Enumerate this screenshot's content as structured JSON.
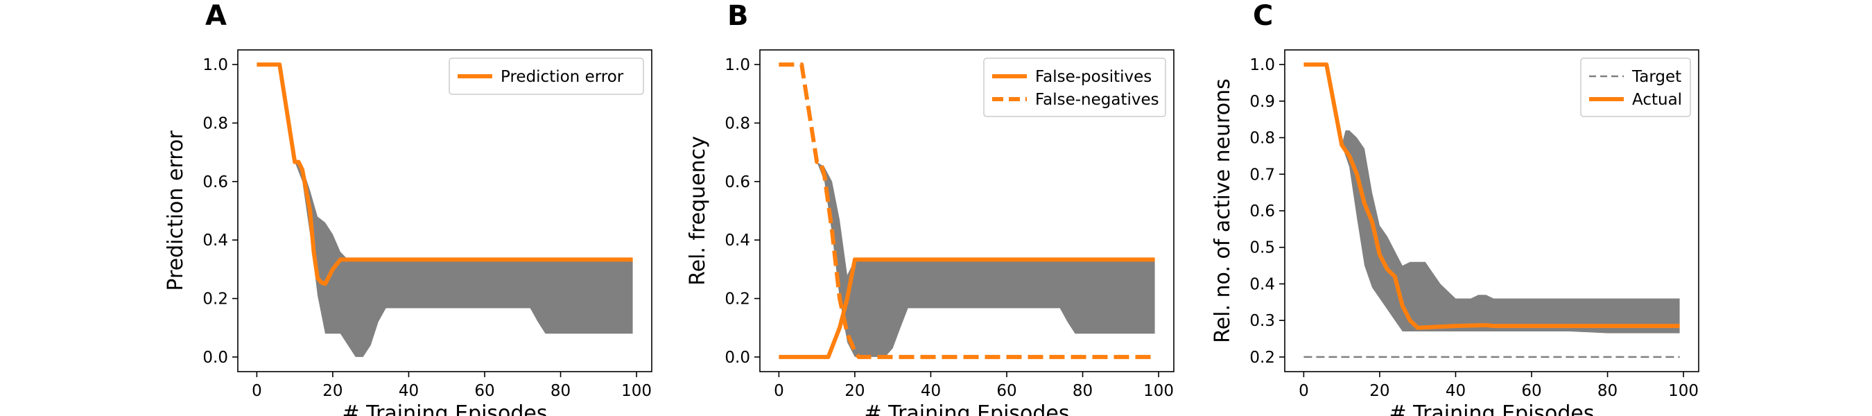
{
  "chart_data": [
    {
      "panel": "A",
      "type": "line",
      "xlabel": "# Training Episodes",
      "ylabel": "Prediction error",
      "xlim": [
        -5,
        104
      ],
      "ylim": [
        -0.05,
        1.05
      ],
      "xticks": [
        "0",
        "20",
        "40",
        "60",
        "80",
        "100"
      ],
      "yticks": [
        "0.0",
        "0.2",
        "0.4",
        "0.6",
        "0.8",
        "1.0"
      ],
      "legend_position": "top-right",
      "band": {
        "color": "#808080",
        "x": [
          10,
          12,
          14,
          16,
          18,
          20,
          22,
          24,
          26,
          28,
          30,
          32,
          34,
          36,
          40,
          50,
          60,
          70,
          72,
          74,
          76,
          78,
          80,
          90,
          99
        ],
        "upper": [
          0.667,
          0.65,
          0.57,
          0.48,
          0.46,
          0.42,
          0.36,
          0.333,
          0.333,
          0.333,
          0.333,
          0.333,
          0.333,
          0.333,
          0.333,
          0.333,
          0.333,
          0.333,
          0.333,
          0.333,
          0.333,
          0.333,
          0.333,
          0.333,
          0.333
        ],
        "lower": [
          0.667,
          0.6,
          0.42,
          0.21,
          0.08,
          0.08,
          0.08,
          0.04,
          0.0,
          0.0,
          0.04,
          0.12,
          0.167,
          0.167,
          0.167,
          0.167,
          0.167,
          0.167,
          0.167,
          0.12,
          0.08,
          0.08,
          0.08,
          0.08,
          0.08
        ]
      },
      "series": [
        {
          "name": "Prediction error",
          "color": "#ff7f0e",
          "dash": "solid",
          "x": [
            0,
            6,
            10,
            11,
            12,
            14,
            15,
            16,
            17,
            18,
            20,
            22,
            99
          ],
          "values": [
            1.0,
            1.0,
            0.667,
            0.667,
            0.64,
            0.5,
            0.36,
            0.27,
            0.255,
            0.25,
            0.3,
            0.333,
            0.333
          ]
        }
      ]
    },
    {
      "panel": "B",
      "type": "line",
      "xlabel": "# Training Episodes",
      "ylabel": "Rel. frequency",
      "xlim": [
        -5,
        104
      ],
      "ylim": [
        -0.05,
        1.05
      ],
      "xticks": [
        "0",
        "20",
        "40",
        "60",
        "80",
        "100"
      ],
      "yticks": [
        "0.0",
        "0.2",
        "0.4",
        "0.6",
        "0.8",
        "1.0"
      ],
      "legend_position": "top-right",
      "band": {
        "color": "#808080",
        "x": [
          10,
          12,
          14,
          16,
          18,
          20,
          22,
          24,
          26,
          28,
          30,
          32,
          34,
          36,
          40,
          50,
          60,
          70,
          74,
          76,
          78,
          80,
          90,
          99
        ],
        "upper": [
          0.667,
          0.65,
          0.6,
          0.47,
          0.28,
          0.333,
          0.333,
          0.333,
          0.333,
          0.333,
          0.333,
          0.333,
          0.333,
          0.333,
          0.333,
          0.333,
          0.333,
          0.333,
          0.333,
          0.333,
          0.333,
          0.333,
          0.333,
          0.333
        ],
        "lower": [
          0.667,
          0.6,
          0.42,
          0.2,
          0.05,
          0.0,
          0.0,
          0.0,
          0.0,
          0.0,
          0.03,
          0.1,
          0.167,
          0.167,
          0.167,
          0.167,
          0.167,
          0.167,
          0.167,
          0.12,
          0.08,
          0.08,
          0.08,
          0.08
        ]
      },
      "series": [
        {
          "name": "False-positives",
          "color": "#ff7f0e",
          "dash": "solid",
          "x": [
            0,
            13,
            16,
            18,
            20,
            99
          ],
          "values": [
            0.0,
            0.0,
            0.1,
            0.2,
            0.333,
            0.333
          ]
        },
        {
          "name": "False-negatives",
          "color": "#ff7f0e",
          "dash": "dashed",
          "x": [
            0,
            6,
            10,
            11,
            12,
            14,
            16,
            18,
            20,
            21,
            99
          ],
          "values": [
            1.0,
            1.0,
            0.667,
            0.667,
            0.62,
            0.43,
            0.2,
            0.08,
            0.02,
            0.0,
            0.0
          ]
        }
      ]
    },
    {
      "panel": "C",
      "type": "line",
      "xlabel": "# Training Episodes",
      "ylabel": "Rel. no. of active neurons",
      "xlim": [
        -5,
        104
      ],
      "ylim": [
        0.16,
        1.04
      ],
      "xticks": [
        "0",
        "20",
        "40",
        "60",
        "80",
        "100"
      ],
      "yticks": [
        "0.2",
        "0.3",
        "0.4",
        "0.5",
        "0.6",
        "0.7",
        "0.8",
        "0.9",
        "1.0"
      ],
      "legend_position": "top-right",
      "band": {
        "color": "#808080",
        "x": [
          10,
          11,
          12,
          14,
          16,
          18,
          20,
          22,
          24,
          26,
          28,
          30,
          32,
          34,
          36,
          38,
          40,
          44,
          46,
          48,
          50,
          60,
          70,
          80,
          90,
          99
        ],
        "upper": [
          0.78,
          0.82,
          0.82,
          0.8,
          0.77,
          0.65,
          0.56,
          0.53,
          0.49,
          0.45,
          0.46,
          0.46,
          0.46,
          0.43,
          0.4,
          0.38,
          0.36,
          0.36,
          0.37,
          0.37,
          0.36,
          0.36,
          0.36,
          0.36,
          0.36,
          0.36
        ],
        "lower": [
          0.78,
          0.75,
          0.72,
          0.58,
          0.45,
          0.39,
          0.36,
          0.33,
          0.3,
          0.27,
          0.27,
          0.27,
          0.27,
          0.27,
          0.27,
          0.27,
          0.27,
          0.27,
          0.27,
          0.27,
          0.27,
          0.27,
          0.27,
          0.265,
          0.265,
          0.265
        ]
      },
      "series": [
        {
          "name": "Target",
          "color": "#808080",
          "dash": "dashed",
          "x": [
            0,
            99
          ],
          "values": [
            0.2,
            0.2
          ]
        },
        {
          "name": "Actual",
          "color": "#ff7f0e",
          "dash": "solid",
          "x": [
            0,
            6,
            10,
            12,
            14,
            16,
            18,
            20,
            22,
            24,
            26,
            28,
            30,
            40,
            48,
            50,
            60,
            99
          ],
          "values": [
            1.0,
            1.0,
            0.78,
            0.75,
            0.7,
            0.62,
            0.57,
            0.48,
            0.44,
            0.42,
            0.34,
            0.3,
            0.28,
            0.285,
            0.287,
            0.285,
            0.285,
            0.285
          ]
        }
      ]
    }
  ]
}
